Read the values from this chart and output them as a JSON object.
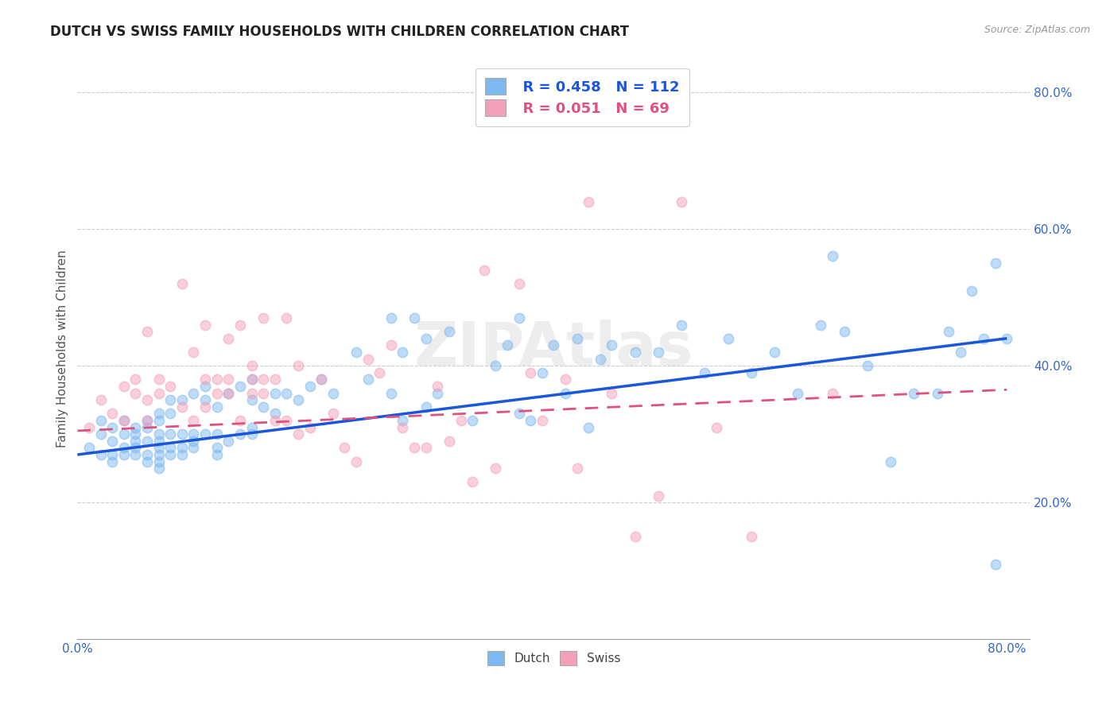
{
  "title": "DUTCH VS SWISS FAMILY HOUSEHOLDS WITH CHILDREN CORRELATION CHART",
  "source": "Source: ZipAtlas.com",
  "ylabel": "Family Households with Children",
  "dutch_color": "#7EB8F0",
  "swiss_color": "#F4A0B8",
  "trend_dutch_color": "#1A56DB",
  "trend_swiss_color": "#E05080",
  "tick_color": "#3366CC",
  "dutch_R": 0.458,
  "dutch_N": 112,
  "swiss_R": 0.051,
  "swiss_N": 69,
  "dutch_trend_start_x": 0.0,
  "dutch_trend_start_y": 0.27,
  "dutch_trend_end_x": 0.8,
  "dutch_trend_end_y": 0.44,
  "swiss_trend_start_x": 0.0,
  "swiss_trend_start_y": 0.305,
  "swiss_trend_end_x": 0.8,
  "swiss_trend_end_y": 0.365,
  "xlim": [
    0.0,
    0.82
  ],
  "ylim": [
    0.0,
    0.85
  ],
  "ytick_vals": [
    0.2,
    0.4,
    0.6,
    0.8
  ],
  "ytick_labels": [
    "20.0%",
    "40.0%",
    "60.0%",
    "80.0%"
  ],
  "xtick_vals": [
    0.0,
    0.8
  ],
  "xtick_labels": [
    "0.0%",
    "80.0%"
  ],
  "grid_ytick_vals": [
    0.2,
    0.4,
    0.6,
    0.8
  ],
  "background_color": "#FFFFFF",
  "grid_color": "#CCCCCC",
  "marker_size": 80,
  "marker_alpha": 0.5,
  "title_fontsize": 12,
  "tick_fontsize": 11,
  "ylabel_fontsize": 11,
  "legend_fontsize": 13,
  "watermark": "ZIPAtlas",
  "dutch_x": [
    0.01,
    0.02,
    0.02,
    0.02,
    0.03,
    0.03,
    0.03,
    0.03,
    0.04,
    0.04,
    0.04,
    0.04,
    0.05,
    0.05,
    0.05,
    0.05,
    0.05,
    0.06,
    0.06,
    0.06,
    0.06,
    0.06,
    0.07,
    0.07,
    0.07,
    0.07,
    0.07,
    0.07,
    0.07,
    0.07,
    0.08,
    0.08,
    0.08,
    0.08,
    0.08,
    0.09,
    0.09,
    0.09,
    0.09,
    0.1,
    0.1,
    0.1,
    0.1,
    0.11,
    0.11,
    0.11,
    0.12,
    0.12,
    0.12,
    0.12,
    0.13,
    0.13,
    0.14,
    0.14,
    0.15,
    0.15,
    0.15,
    0.15,
    0.16,
    0.17,
    0.17,
    0.18,
    0.19,
    0.2,
    0.21,
    0.22,
    0.24,
    0.25,
    0.27,
    0.27,
    0.28,
    0.28,
    0.29,
    0.3,
    0.3,
    0.31,
    0.32,
    0.34,
    0.36,
    0.37,
    0.38,
    0.38,
    0.39,
    0.4,
    0.41,
    0.42,
    0.43,
    0.44,
    0.45,
    0.46,
    0.48,
    0.5,
    0.52,
    0.54,
    0.56,
    0.58,
    0.6,
    0.62,
    0.64,
    0.65,
    0.66,
    0.68,
    0.7,
    0.72,
    0.74,
    0.75,
    0.76,
    0.77,
    0.78,
    0.79,
    0.79,
    0.8
  ],
  "dutch_y": [
    0.28,
    0.3,
    0.27,
    0.32,
    0.29,
    0.27,
    0.31,
    0.26,
    0.3,
    0.28,
    0.27,
    0.32,
    0.31,
    0.29,
    0.27,
    0.28,
    0.3,
    0.32,
    0.29,
    0.27,
    0.26,
    0.31,
    0.33,
    0.3,
    0.28,
    0.27,
    0.29,
    0.25,
    0.32,
    0.26,
    0.35,
    0.3,
    0.28,
    0.33,
    0.27,
    0.35,
    0.3,
    0.28,
    0.27,
    0.36,
    0.3,
    0.29,
    0.28,
    0.37,
    0.3,
    0.35,
    0.28,
    0.34,
    0.3,
    0.27,
    0.36,
    0.29,
    0.37,
    0.3,
    0.38,
    0.35,
    0.31,
    0.3,
    0.34,
    0.36,
    0.33,
    0.36,
    0.35,
    0.37,
    0.38,
    0.36,
    0.42,
    0.38,
    0.47,
    0.36,
    0.42,
    0.32,
    0.47,
    0.44,
    0.34,
    0.36,
    0.45,
    0.32,
    0.4,
    0.43,
    0.33,
    0.47,
    0.32,
    0.39,
    0.43,
    0.36,
    0.44,
    0.31,
    0.41,
    0.43,
    0.42,
    0.42,
    0.46,
    0.39,
    0.44,
    0.39,
    0.42,
    0.36,
    0.46,
    0.56,
    0.45,
    0.4,
    0.26,
    0.36,
    0.36,
    0.45,
    0.42,
    0.51,
    0.44,
    0.11,
    0.55,
    0.44
  ],
  "swiss_x": [
    0.01,
    0.02,
    0.03,
    0.04,
    0.04,
    0.05,
    0.05,
    0.06,
    0.06,
    0.06,
    0.07,
    0.07,
    0.08,
    0.09,
    0.09,
    0.1,
    0.1,
    0.11,
    0.11,
    0.11,
    0.12,
    0.12,
    0.13,
    0.13,
    0.13,
    0.14,
    0.14,
    0.15,
    0.15,
    0.15,
    0.16,
    0.16,
    0.16,
    0.17,
    0.17,
    0.18,
    0.18,
    0.19,
    0.19,
    0.2,
    0.21,
    0.22,
    0.23,
    0.24,
    0.25,
    0.26,
    0.27,
    0.28,
    0.29,
    0.3,
    0.31,
    0.32,
    0.33,
    0.34,
    0.35,
    0.36,
    0.38,
    0.39,
    0.4,
    0.42,
    0.43,
    0.44,
    0.46,
    0.48,
    0.5,
    0.52,
    0.55,
    0.58,
    0.65
  ],
  "swiss_y": [
    0.31,
    0.35,
    0.33,
    0.37,
    0.32,
    0.38,
    0.36,
    0.45,
    0.35,
    0.32,
    0.38,
    0.36,
    0.37,
    0.52,
    0.34,
    0.32,
    0.42,
    0.38,
    0.34,
    0.46,
    0.38,
    0.36,
    0.38,
    0.36,
    0.44,
    0.32,
    0.46,
    0.38,
    0.4,
    0.36,
    0.38,
    0.36,
    0.47,
    0.38,
    0.32,
    0.47,
    0.32,
    0.4,
    0.3,
    0.31,
    0.38,
    0.33,
    0.28,
    0.26,
    0.41,
    0.39,
    0.43,
    0.31,
    0.28,
    0.28,
    0.37,
    0.29,
    0.32,
    0.23,
    0.54,
    0.25,
    0.52,
    0.39,
    0.32,
    0.38,
    0.25,
    0.64,
    0.36,
    0.15,
    0.21,
    0.64,
    0.31,
    0.15,
    0.36
  ]
}
